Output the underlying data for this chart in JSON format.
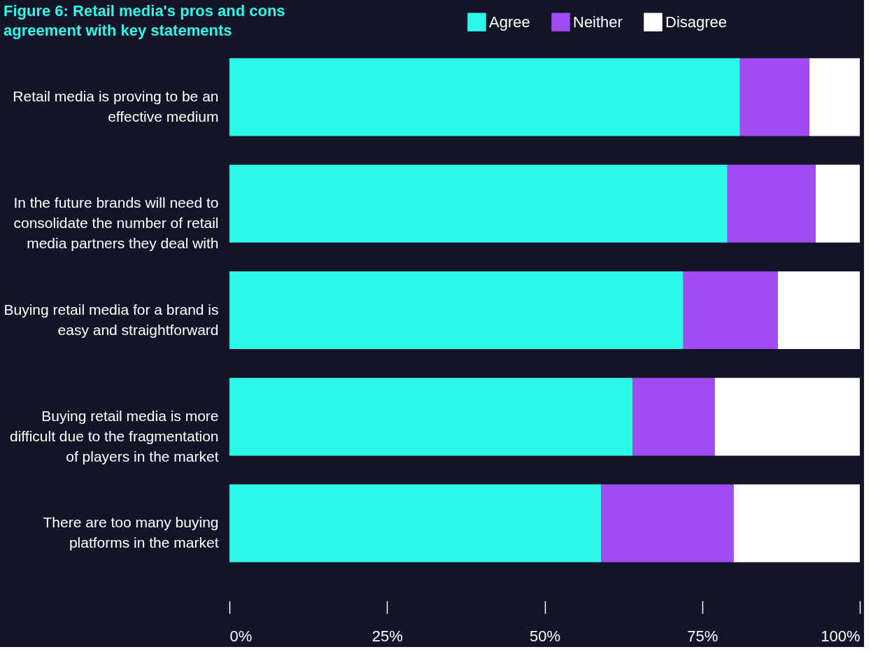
{
  "chart_data": {
    "type": "bar",
    "orientation": "horizontal",
    "stacked": true,
    "title": [
      "Figure 6: Retail media's pros and cons",
      "agreement with key statements"
    ],
    "categories": [
      "Retail media is proving to be an effective medium",
      "In the future brands will need to consolidate the number of retail media partners they deal with",
      "Buying retail media for a brand is easy and straightforward",
      "Buying retail media is more difficult due to the fragmentation of players in the market",
      "There are too many buying platforms in the market"
    ],
    "series": [
      {
        "name": "Agree",
        "color": "#2ef8e8",
        "values": [
          81,
          79,
          72,
          64,
          59
        ]
      },
      {
        "name": "Neither",
        "color": "#a04cf2",
        "values": [
          11,
          14,
          15,
          13,
          21
        ]
      },
      {
        "name": "Disagree",
        "color": "#ffffff",
        "values": [
          8,
          7,
          13,
          23,
          20
        ]
      }
    ],
    "xlim": [
      0,
      100
    ],
    "xticks": [
      {
        "value": 0,
        "label": "0%"
      },
      {
        "value": 25,
        "label": "25%"
      },
      {
        "value": 50,
        "label": "50%"
      },
      {
        "value": 75,
        "label": "75%"
      },
      {
        "value": 100,
        "label": "100%"
      }
    ],
    "grid": false,
    "legend": "top right"
  }
}
